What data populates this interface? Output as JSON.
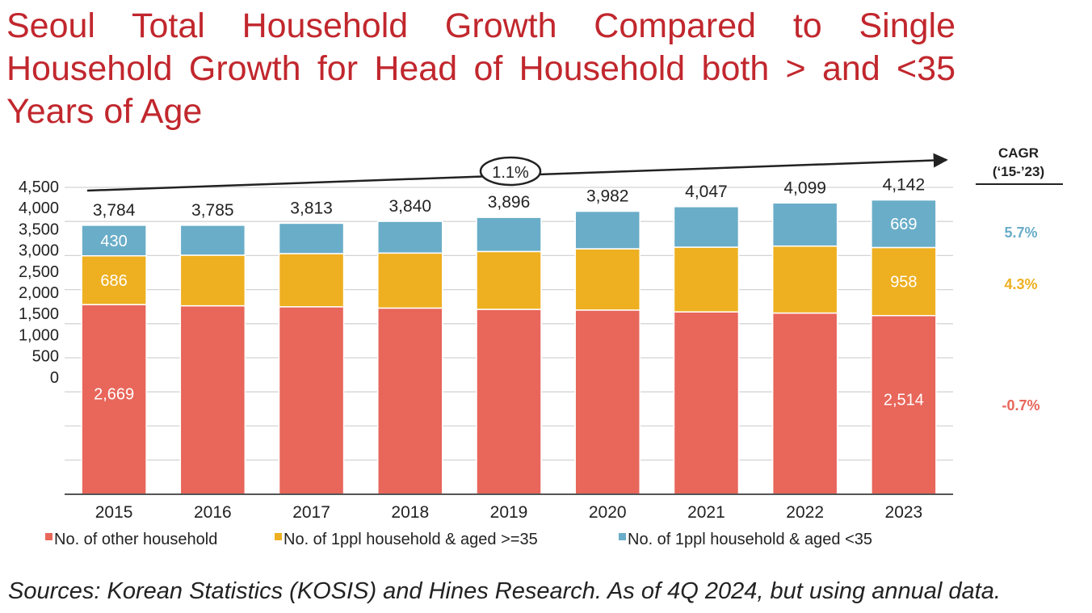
{
  "title": "Seoul Total Household Growth Compared to Single Household Growth for Head of Household both >  and <35 Years of Age",
  "source": "Sources: Korean Statistics (KOSIS) and Hines Research. As of 4Q 2024, but using annual data.",
  "chart_data": {
    "type": "bar",
    "stacked": true,
    "categories": [
      "2015",
      "2016",
      "2017",
      "2018",
      "2019",
      "2020",
      "2021",
      "2022",
      "2023"
    ],
    "y_ticks": [
      "4,500",
      "4,000",
      "3,500",
      "3,000",
      "2,500",
      "2,000",
      "1,500",
      "1,000",
      "500",
      "0"
    ],
    "ylim": [
      0,
      4500
    ],
    "totals": [
      "3,784",
      "3,785",
      "3,813",
      "3,840",
      "3,896",
      "3,982",
      "4,047",
      "4,099",
      "4,142"
    ],
    "series": [
      {
        "name": "No. of other household",
        "color": "#e8665a",
        "values": [
          2669,
          2652,
          2638,
          2620,
          2602,
          2592,
          2566,
          2550,
          2514
        ],
        "labels": [
          "2,669",
          "",
          "",
          "",
          "",
          "",
          "",
          "",
          "2,514"
        ]
      },
      {
        "name": "No. of 1ppl household & aged >=35",
        "color": "#eeb021",
        "values": [
          686,
          712,
          748,
          774,
          814,
          862,
          911,
          942,
          958
        ],
        "labels": [
          "686",
          "",
          "",
          "",
          "",
          "",
          "",
          "",
          "958"
        ]
      },
      {
        "name": "No. of 1ppl household & aged <35",
        "color": "#6aadc8",
        "values": [
          430,
          421,
          427,
          446,
          480,
          528,
          570,
          607,
          669
        ],
        "labels": [
          "430",
          "",
          "",
          "",
          "",
          "",
          "",
          "",
          "669"
        ]
      }
    ],
    "trend_label": "1.1%",
    "cagr": {
      "header_line1": "CAGR",
      "header_line2": "(‘15-’23)",
      "values": [
        {
          "value": "5.7%",
          "color": "#6aadc8"
        },
        {
          "value": "4.3%",
          "color": "#eeb021"
        },
        {
          "value": "-0.7%",
          "color": "#e8665a"
        }
      ]
    },
    "grid": true,
    "legend_position": "bottom"
  }
}
